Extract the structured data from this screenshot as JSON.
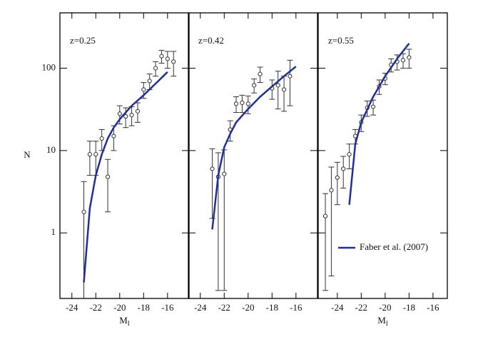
{
  "chart_data": [
    {
      "type": "scatter",
      "annotation": "z=0.25",
      "log_y": true,
      "show_ytick_labels": true,
      "ylabel": "N",
      "xlabel": "M",
      "xlabel_sub": "I",
      "xlim": [
        -25,
        -14.2
      ],
      "ylim": [
        0.16,
        470
      ],
      "xticks": [
        -24,
        -22,
        -20,
        -18,
        -16
      ],
      "yticks": [
        1,
        10,
        100
      ],
      "point_color": "#333333",
      "x": [
        -23,
        -22.5,
        -22,
        -21.5,
        -21,
        -20.5,
        -20,
        -19.5,
        -19,
        -18.5,
        -18,
        -17.5,
        -17,
        -16.5,
        -16,
        -15.5
      ],
      "values": [
        1.8,
        9,
        9,
        14,
        4.8,
        15,
        28,
        26,
        27,
        30,
        55,
        70,
        100,
        140,
        130,
        120
      ],
      "errors": [
        2.4,
        4,
        4,
        4,
        3,
        5,
        7,
        7,
        7,
        8,
        12,
        15,
        20,
        25,
        30,
        40
      ],
      "line": {
        "color": "#1f2f9a",
        "x": [
          -23,
          -22.5,
          -22,
          -21.5,
          -21,
          -20.5,
          -20,
          -19,
          -18,
          -17,
          -16
        ],
        "values": [
          0.25,
          2,
          5,
          9,
          14,
          19,
          24,
          35,
          47,
          65,
          90
        ]
      }
    },
    {
      "type": "scatter",
      "annotation": "z=0.42",
      "log_y": true,
      "show_ytick_labels": false,
      "xlim": [
        -25,
        -14.2
      ],
      "ylim": [
        0.16,
        470
      ],
      "xticks": [
        -24,
        -22,
        -20,
        -18,
        -16
      ],
      "yticks": [
        1,
        10,
        100
      ],
      "point_color": "#333333",
      "x": [
        -23,
        -22.5,
        -22,
        -21.5,
        -21,
        -20.5,
        -20,
        -19.5,
        -19,
        -18,
        -17.5,
        -17,
        -16.5
      ],
      "values": [
        6,
        4.8,
        5.2,
        18,
        37,
        38,
        37,
        62,
        85,
        57,
        62,
        55,
        80
      ],
      "errors": [
        4.5,
        4.6,
        5,
        5,
        8,
        9,
        9,
        12,
        18,
        15,
        30,
        25,
        45
      ],
      "line": {
        "color": "#1f2f9a",
        "x": [
          -23,
          -22.5,
          -22,
          -21.5,
          -21,
          -20,
          -19,
          -18,
          -17,
          -16
        ],
        "values": [
          1.1,
          5,
          11,
          16,
          22,
          32,
          45,
          60,
          80,
          105
        ]
      }
    },
    {
      "type": "scatter",
      "annotation": "z=0.55",
      "log_y": true,
      "show_ytick_labels": false,
      "xlabel": "M",
      "xlabel_sub": "I",
      "xlim": [
        -25.6,
        -14.8
      ],
      "ylim": [
        0.16,
        470
      ],
      "xticks": [
        -24,
        -22,
        -20,
        -18,
        -16
      ],
      "yticks": [
        1,
        10,
        100
      ],
      "point_color": "#333333",
      "x": [
        -25,
        -24.5,
        -24,
        -23.5,
        -23,
        -22.5,
        -22,
        -21.5,
        -21,
        -20.5,
        -20,
        -19.5,
        -19,
        -18.5,
        -18
      ],
      "values": [
        1.6,
        3.3,
        4.7,
        6,
        9,
        15,
        22,
        33,
        34,
        60,
        75,
        110,
        120,
        125,
        135
      ],
      "errors": [
        1.4,
        3,
        2.5,
        2.5,
        3,
        3,
        5,
        7,
        7,
        12,
        12,
        20,
        25,
        25,
        35
      ],
      "line": {
        "name": "Faber et al. (2007)",
        "color": "#1f2f9a",
        "x": [
          -23,
          -22.5,
          -22,
          -21,
          -20,
          -19,
          -18
        ],
        "values": [
          2.2,
          12,
          22,
          45,
          80,
          130,
          200
        ]
      }
    }
  ]
}
